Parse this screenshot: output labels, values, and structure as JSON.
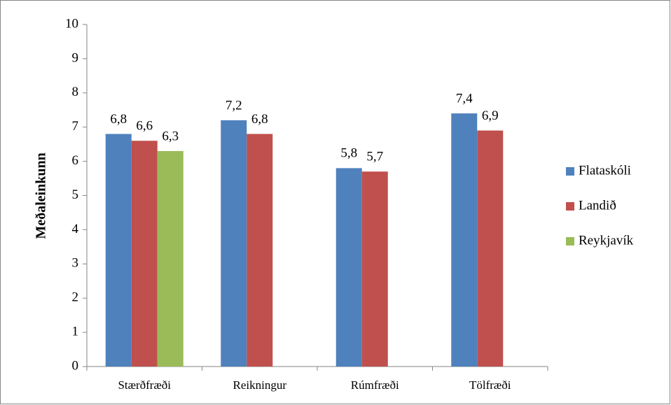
{
  "chart_data": {
    "type": "bar",
    "y_label": "Meðaleinkunn",
    "categories": [
      "Stærðfræði",
      "Reikningur",
      "Rúmfræði",
      "Tölfræði"
    ],
    "series": [
      {
        "name": "Flataskóli",
        "color": "#4f81bd",
        "values": [
          6.8,
          7.2,
          5.8,
          7.4
        ],
        "value_labels": [
          "6,8",
          "7,2",
          "5,8",
          "7,4"
        ]
      },
      {
        "name": "Landið",
        "color": "#c0504d",
        "values": [
          6.6,
          6.8,
          5.7,
          6.9
        ],
        "value_labels": [
          "6,6",
          "6,8",
          "5,7",
          "6,9"
        ]
      },
      {
        "name": "Reykjavík",
        "color": "#9bbb59",
        "values": [
          6.3,
          null,
          null,
          null
        ],
        "value_labels": [
          "6,3",
          null,
          null,
          null
        ]
      }
    ],
    "ylim": [
      0,
      10
    ],
    "yticks": [
      0,
      1,
      2,
      3,
      4,
      5,
      6,
      7,
      8,
      9,
      10
    ],
    "grid": false,
    "legend": "right"
  }
}
